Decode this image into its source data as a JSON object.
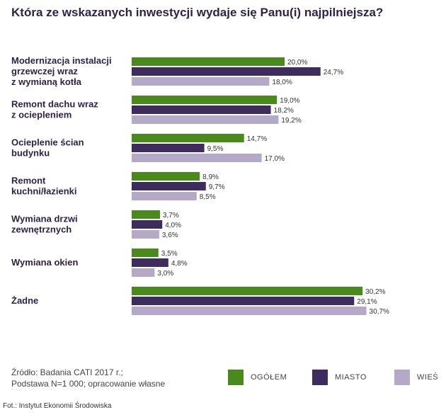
{
  "title": "Która ze wskazanych inwestycji wydaje się Panu(i) najpilniejsza?",
  "source_lines": [
    "Źródło: Badania CATI 2017 r.;",
    "Podstawa N=1 000; opracowanie własne"
  ],
  "photo_credit": "Fot.: Instytut Ekonomii Środowiska",
  "chart_data": {
    "type": "bar",
    "orientation": "horizontal",
    "title": "Która ze wskazanych inwestycji wydaje się Panu(i) najpilniejsza?",
    "categories": [
      [
        "Modernizacja instalacji",
        "grzewczej wraz",
        "z wymianą kotła"
      ],
      [
        "Remont dachu wraz",
        "z ociepleniem"
      ],
      [
        "Ocieplenie ścian",
        "budynku"
      ],
      [
        "Remont",
        "kuchni/łazienki"
      ],
      [
        "Wymiana drzwi",
        "zewnętrznych"
      ],
      [
        "Wymiana okien"
      ],
      [
        "Żadne"
      ]
    ],
    "series": [
      {
        "name": "OGÓŁEM",
        "color": "#4a8a1c",
        "values": [
          20.0,
          19.0,
          14.7,
          8.9,
          3.7,
          3.5,
          30.2
        ],
        "labels": [
          "20,0%",
          "19,0%",
          "14,7%",
          "8,9%",
          "3,7%",
          "3,5%",
          "30,2%"
        ]
      },
      {
        "name": "MIASTO",
        "color": "#3e2c5e",
        "values": [
          24.7,
          18.2,
          9.5,
          9.7,
          4.0,
          4.8,
          29.1
        ],
        "labels": [
          "24,7%",
          "18,2%",
          "9,5%",
          "9,7%",
          "4,0%",
          "4,8%",
          "29,1%"
        ]
      },
      {
        "name": "WIEŚ",
        "color": "#b4a9c6",
        "values": [
          18.0,
          19.2,
          17.0,
          8.5,
          3.6,
          3.0,
          30.7
        ],
        "labels": [
          "18,0%",
          "19,2%",
          "17,0%",
          "8,5%",
          "3,6%",
          "3,0%",
          "30,7%"
        ]
      }
    ],
    "xlim": [
      0,
      30.7
    ],
    "grid": false,
    "legend_position": "bottom"
  }
}
